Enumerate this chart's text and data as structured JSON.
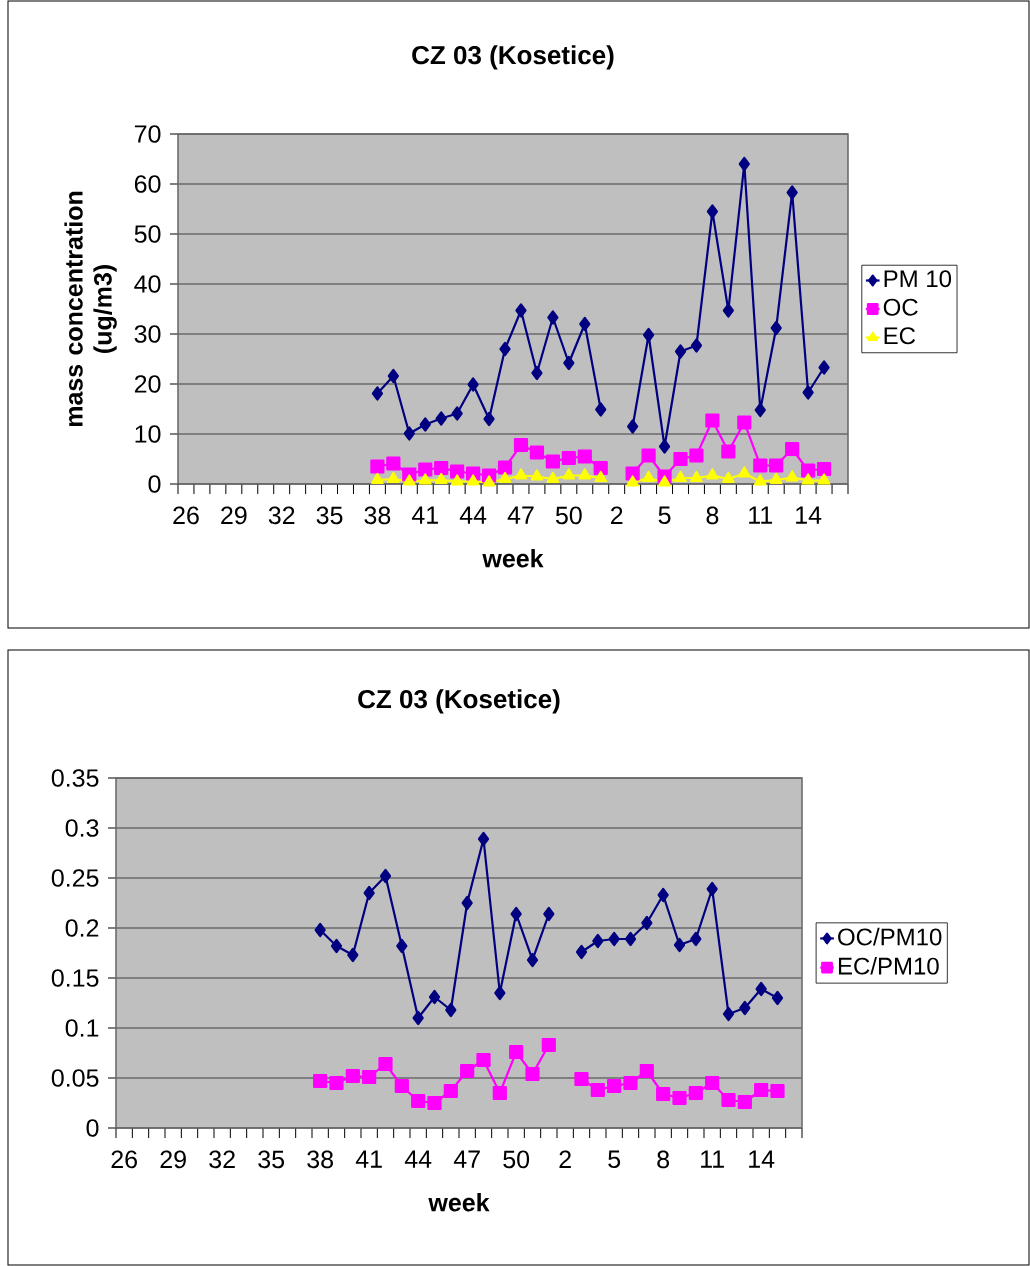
{
  "chart_data": [
    {
      "type": "line",
      "title": "CZ 03 (Kosetice)",
      "xlabel": "week",
      "ylabel": "mass concentration (ug/m3)",
      "categories": [
        "26",
        null,
        null,
        "29",
        null,
        null,
        "32",
        null,
        null,
        "35",
        null,
        null,
        "38",
        null,
        null,
        "41",
        null,
        null,
        "44",
        null,
        null,
        "47",
        null,
        null,
        "50",
        null,
        null,
        "2",
        null,
        null,
        "5",
        null,
        null,
        "8",
        null,
        null,
        "11",
        null,
        null,
        "14",
        null,
        null
      ],
      "series": [
        {
          "name": "PM 10",
          "color": "#000080",
          "marker": "diamond",
          "values": [
            null,
            null,
            null,
            null,
            null,
            null,
            null,
            null,
            null,
            null,
            null,
            null,
            18.1,
            21.6,
            10.1,
            11.9,
            13.1,
            14.1,
            19.9,
            13.0,
            27.0,
            34.7,
            22.2,
            33.3,
            24.2,
            32.0,
            14.9,
            null,
            11.5,
            29.8,
            7.5,
            26.5,
            27.7,
            54.5,
            34.7,
            64.0,
            14.8,
            31.2,
            58.3,
            18.3,
            23.3,
            null
          ]
        },
        {
          "name": "OC",
          "color": "#ff00ff",
          "marker": "square",
          "values": [
            null,
            null,
            null,
            null,
            null,
            null,
            null,
            null,
            null,
            null,
            null,
            null,
            3.5,
            4.1,
            1.9,
            2.9,
            3.2,
            2.5,
            2.1,
            1.7,
            3.3,
            7.8,
            6.3,
            4.5,
            5.2,
            5.5,
            3.2,
            null,
            2.1,
            5.7,
            1.5,
            5.0,
            5.7,
            12.7,
            6.5,
            12.3,
            3.7,
            3.7,
            7.0,
            2.7,
            3.0,
            null
          ]
        },
        {
          "name": "EC",
          "color": "#ffff00",
          "marker": "triangle",
          "values": [
            null,
            null,
            null,
            null,
            null,
            null,
            null,
            null,
            null,
            null,
            null,
            null,
            0.8,
            1.0,
            0.5,
            0.7,
            0.8,
            0.5,
            0.5,
            0.3,
            1.0,
            1.7,
            1.5,
            1.0,
            1.7,
            1.7,
            1.2,
            null,
            0.3,
            1.2,
            0.3,
            1.2,
            1.2,
            1.7,
            1.0,
            2.1,
            0.5,
            0.8,
            1.3,
            0.7,
            0.7,
            null
          ]
        }
      ],
      "ylim": [
        0,
        70
      ],
      "yticks": [
        0,
        10,
        20,
        30,
        40,
        50,
        60,
        70
      ],
      "grid": "y",
      "legend": "right"
    },
    {
      "type": "line",
      "title": "CZ 03 (Kosetice)",
      "xlabel": "week",
      "categories": [
        "26",
        null,
        null,
        "29",
        null,
        null,
        "32",
        null,
        null,
        "35",
        null,
        null,
        "38",
        null,
        null,
        "41",
        null,
        null,
        "44",
        null,
        null,
        "47",
        null,
        null,
        "50",
        null,
        null,
        "2",
        null,
        null,
        "5",
        null,
        null,
        "8",
        null,
        null,
        "11",
        null,
        null,
        "14",
        null,
        null
      ],
      "series": [
        {
          "name": "OC/PM10",
          "color": "#000080",
          "marker": "diamond",
          "values": [
            null,
            null,
            null,
            null,
            null,
            null,
            null,
            null,
            null,
            null,
            null,
            null,
            0.198,
            0.182,
            0.173,
            0.235,
            0.252,
            0.182,
            0.11,
            0.131,
            0.118,
            0.225,
            0.289,
            0.135,
            0.214,
            0.168,
            0.214,
            null,
            0.176,
            0.187,
            0.189,
            0.189,
            0.205,
            0.233,
            0.183,
            0.189,
            0.239,
            0.114,
            0.12,
            0.139,
            0.13,
            null
          ]
        },
        {
          "name": "EC/PM10",
          "color": "#ff00ff",
          "marker": "square",
          "values": [
            null,
            null,
            null,
            null,
            null,
            null,
            null,
            null,
            null,
            null,
            null,
            null,
            0.047,
            0.045,
            0.052,
            0.051,
            0.064,
            0.042,
            0.027,
            0.025,
            0.037,
            0.057,
            0.068,
            0.035,
            0.076,
            0.054,
            0.083,
            null,
            0.049,
            0.038,
            0.042,
            0.045,
            0.057,
            0.034,
            0.03,
            0.035,
            0.045,
            0.028,
            0.026,
            0.038,
            0.037,
            null
          ]
        }
      ],
      "ylim": [
        0,
        0.35
      ],
      "yticks": [
        0,
        0.05,
        0.1,
        0.15,
        0.2,
        0.25,
        0.3,
        0.35
      ],
      "grid": "y",
      "legend": "right"
    }
  ]
}
